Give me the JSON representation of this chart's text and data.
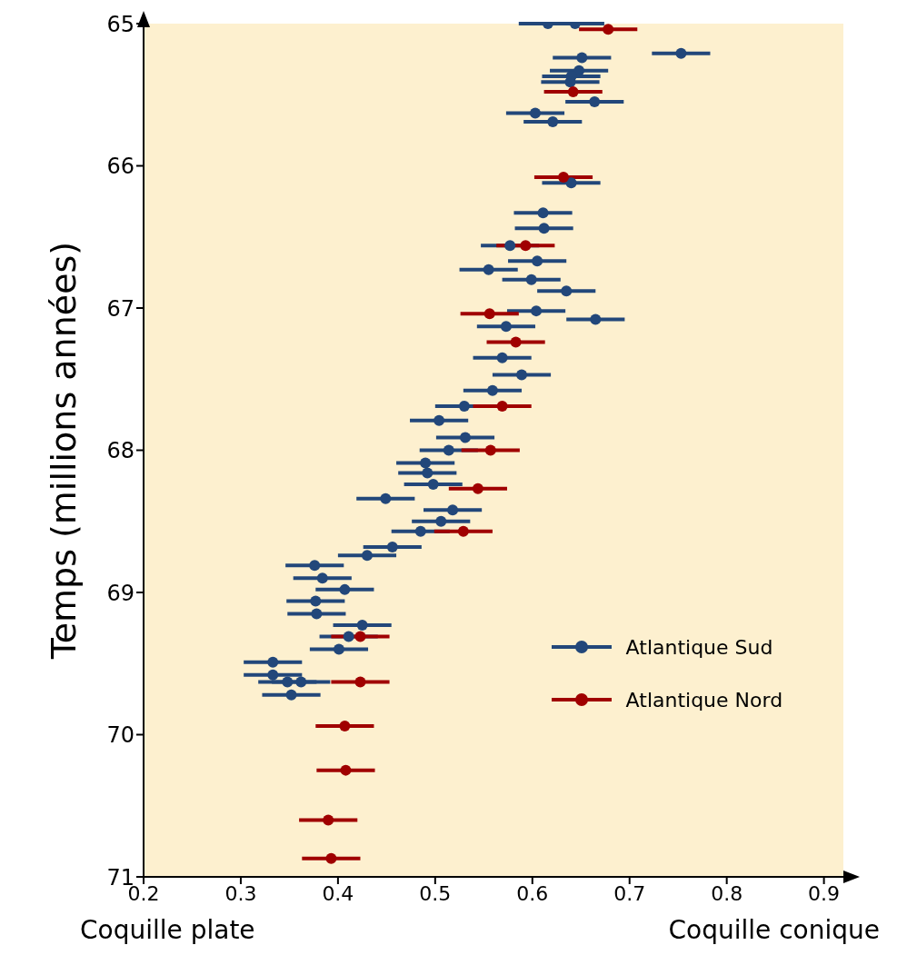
{
  "chart_data": {
    "type": "scatter",
    "xlabel": "Coquille plate",
    "ylabel": "Temps (millions années)",
    "annotations": [
      "Coquille conique"
    ],
    "xlim": [
      0.2,
      0.92
    ],
    "xticks": [
      0.2,
      0.3,
      0.4,
      0.5,
      0.6,
      0.7,
      0.8,
      0.9
    ],
    "ylim": [
      71,
      65
    ],
    "yticks": [
      65,
      66,
      67,
      68,
      69,
      70,
      71
    ],
    "grid": false,
    "legend": "right",
    "marker": "circle",
    "series": [
      {
        "name": "Atlantique Sud",
        "color": "#22477a",
        "x": [
          0.616,
          0.644,
          0.753,
          0.651,
          0.648,
          0.64,
          0.639,
          0.664,
          0.603,
          0.621,
          0.64,
          0.611,
          0.612,
          0.577,
          0.605,
          0.555,
          0.599,
          0.635,
          0.604,
          0.665,
          0.573,
          0.569,
          0.589,
          0.559,
          0.53,
          0.504,
          0.531,
          0.514,
          0.49,
          0.492,
          0.498,
          0.449,
          0.518,
          0.506,
          0.485,
          0.456,
          0.43,
          0.376,
          0.384,
          0.407,
          0.377,
          0.378,
          0.425,
          0.411,
          0.401,
          0.333,
          0.333,
          0.348,
          0.362,
          0.352
        ],
        "values": [
          65.0,
          65.0,
          65.21,
          65.24,
          65.33,
          65.37,
          65.41,
          65.55,
          65.63,
          65.69,
          66.12,
          66.33,
          66.44,
          66.56,
          66.67,
          66.73,
          66.8,
          66.88,
          67.02,
          67.08,
          67.13,
          67.35,
          67.47,
          67.58,
          67.69,
          67.79,
          67.91,
          68.0,
          68.09,
          68.16,
          68.24,
          68.34,
          68.42,
          68.5,
          68.57,
          68.68,
          68.74,
          68.81,
          68.9,
          68.98,
          69.06,
          69.15,
          69.23,
          69.31,
          69.4,
          69.49,
          69.58,
          69.63,
          69.63,
          69.72
        ],
        "xerrors": [
          0.03,
          0.03,
          0.03,
          0.03,
          0.03,
          0.03,
          0.03,
          0.03,
          0.03,
          0.03,
          0.03,
          0.03,
          0.03,
          0.03,
          0.03,
          0.03,
          0.03,
          0.03,
          0.03,
          0.03,
          0.03,
          0.03,
          0.03,
          0.03,
          0.03,
          0.03,
          0.03,
          0.03,
          0.03,
          0.03,
          0.03,
          0.03,
          0.03,
          0.03,
          0.03,
          0.03,
          0.03,
          0.03,
          0.03,
          0.03,
          0.03,
          0.03,
          0.03,
          0.03,
          0.03,
          0.03,
          0.03,
          0.03,
          0.03,
          0.03
        ]
      },
      {
        "name": "Atlantique Nord",
        "color": "#a00000",
        "x": [
          0.678,
          0.642,
          0.632,
          0.593,
          0.556,
          0.583,
          0.569,
          0.557,
          0.544,
          0.529,
          0.423,
          0.423,
          0.407,
          0.408,
          0.39,
          0.393
        ],
        "values": [
          65.04,
          65.48,
          66.08,
          66.56,
          67.04,
          67.24,
          67.69,
          68.0,
          68.27,
          68.57,
          69.31,
          69.63,
          69.94,
          70.25,
          70.6,
          70.87
        ],
        "xerrors": [
          0.03,
          0.03,
          0.03,
          0.03,
          0.03,
          0.03,
          0.03,
          0.03,
          0.03,
          0.03,
          0.03,
          0.03,
          0.03,
          0.03,
          0.03,
          0.03
        ]
      }
    ]
  }
}
